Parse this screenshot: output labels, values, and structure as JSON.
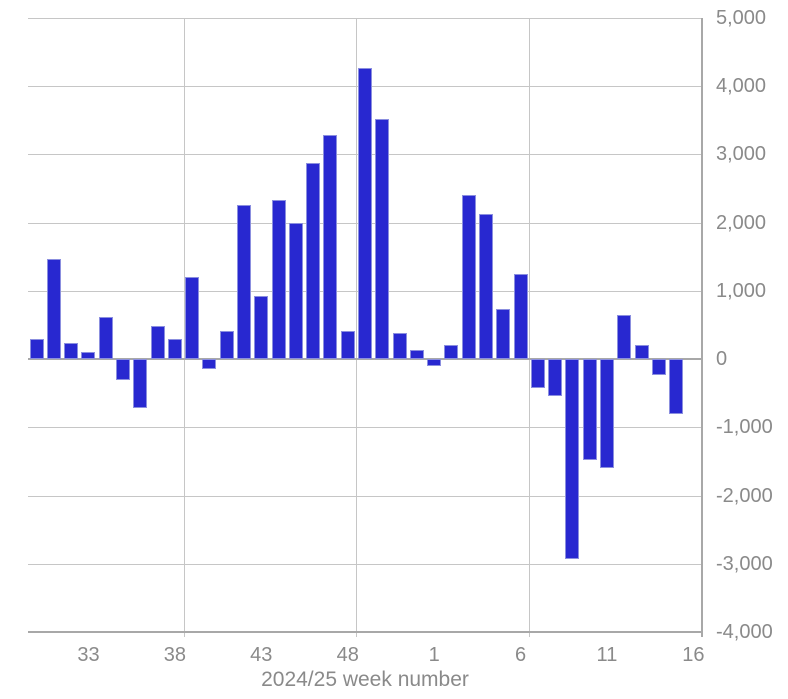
{
  "chart_data": {
    "type": "bar",
    "title": "",
    "xlabel": "2024/25 week number",
    "ylabel": "",
    "categories": [
      "30",
      "31",
      "32",
      "33",
      "34",
      "35",
      "36",
      "37",
      "38",
      "39",
      "40",
      "41",
      "42",
      "43",
      "44",
      "45",
      "46",
      "47",
      "48",
      "49",
      "50",
      "51",
      "52",
      "1",
      "2",
      "3",
      "4",
      "5",
      "6",
      "7",
      "8",
      "9",
      "10",
      "11",
      "12",
      "13",
      "14",
      "15"
    ],
    "values": [
      300,
      1470,
      240,
      110,
      610,
      -300,
      -720,
      490,
      290,
      1200,
      -140,
      410,
      2260,
      930,
      2330,
      2000,
      2880,
      3290,
      410,
      4270,
      3520,
      380,
      130,
      -100,
      210,
      2400,
      2130,
      730,
      1250,
      -420,
      -540,
      -2930,
      -1480,
      -1590,
      650,
      210,
      -240,
      -800
    ],
    "ylim": [
      -4000,
      5000
    ],
    "y_tick_values": [
      5000,
      4000,
      3000,
      2000,
      1000,
      0,
      -1000,
      -2000,
      -3000,
      -4000
    ],
    "y_tick_labels": [
      "5,000",
      "4,000",
      "3,000",
      "2,000",
      "1,000",
      "0",
      "-1,000",
      "-2,000",
      "-3,000",
      "-4,000"
    ],
    "x_tick_labels": [
      "33",
      "38",
      "43",
      "48",
      "1",
      "6",
      "11",
      "16"
    ],
    "x_tick_slot_indices": [
      3,
      8,
      13,
      18,
      23,
      28,
      33,
      38
    ],
    "v_gridline_slot_boundaries": [
      9,
      19,
      29
    ],
    "grid": "on",
    "legend": "none",
    "colors": {
      "bar_fill": "#2828d0",
      "bar_edge": "#8b8fdf",
      "gridline": "#c6c6c6",
      "axis_line": "#a8a8a8",
      "label_text": "#8a8a8a",
      "background": "#ffffff"
    }
  }
}
